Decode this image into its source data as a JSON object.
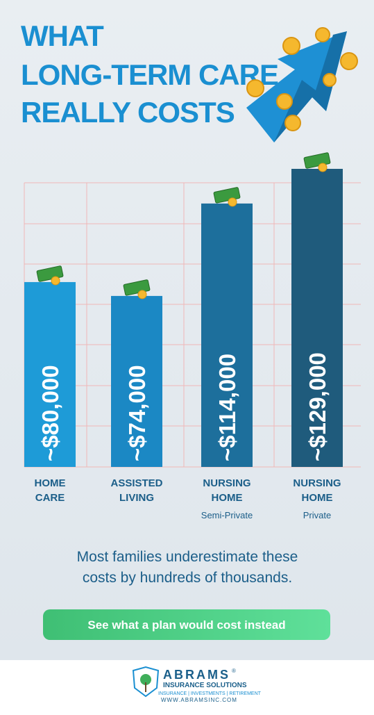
{
  "chart_data": {
    "type": "bar",
    "title_lines": [
      "WHAT",
      "LONG-TERM CARE",
      "REALLY COSTS"
    ],
    "categories": [
      "HOME CARE",
      "ASSISTED LIVING",
      "NURSING HOME",
      "NURSING HOME"
    ],
    "sublabels": [
      null,
      null,
      "Semi-Private",
      "Private"
    ],
    "values": [
      80000,
      74000,
      114000,
      129000
    ],
    "value_labels": [
      "~$80,000",
      "~$74,000",
      "~$114,000",
      "~$129,000"
    ],
    "colors": [
      "#1e9bd7",
      "#1b88c4",
      "#1d6f9c",
      "#1f5b7c"
    ]
  },
  "note_lines": [
    "Most families underestimate these",
    "costs by hundreds of thousands."
  ],
  "button": "See what a plan would cost instead",
  "footer": {
    "brand": "ABRAMS",
    "mark": "®",
    "subtitle": "INSURANCE SOLUTIONS",
    "tagline": "INSURANCE | INVESTMENTS | RETIREMENT",
    "url": "WWW.ABRAMSINC.COM"
  }
}
